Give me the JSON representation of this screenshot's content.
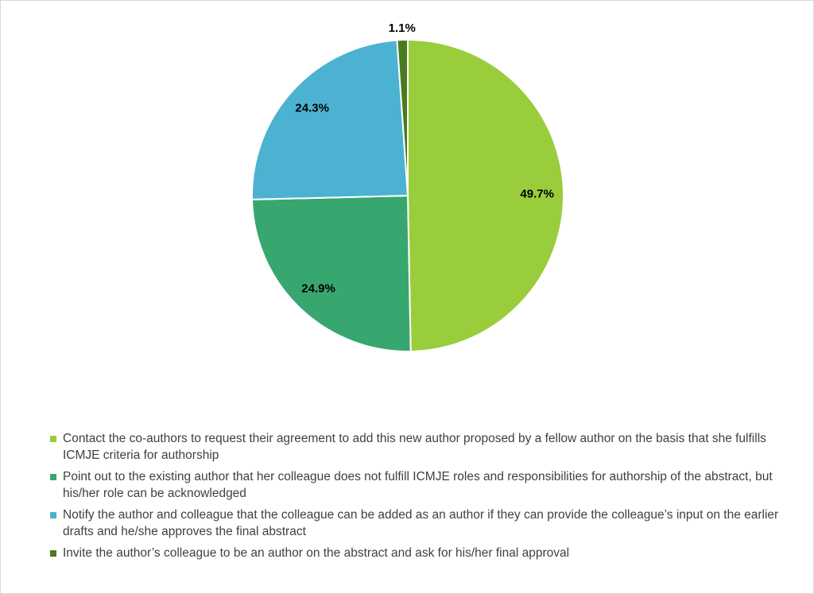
{
  "chart_data": {
    "type": "pie",
    "categories": [
      "Contact the co-authors to request their agreement to add this new author proposed by a fellow author on the basis that she fulfills ICMJE criteria for authorship",
      "Point out to the existing author that her colleague does not fulfill ICMJE roles and responsibilities for authorship of the abstract, but his/her role can be acknowledged",
      "Notify the author and colleague that the colleague can be added as an author if they can provide the colleague’s input on the earlier drafts and he/she approves the final abstract",
      "Invite the author’s colleague to be an author on the abstract and ask for his/her final approval"
    ],
    "values": [
      49.7,
      24.9,
      24.3,
      1.1
    ],
    "value_labels": [
      "49.7%",
      "24.9%",
      "24.3%",
      "1.1%"
    ],
    "colors": [
      "#9acd3c",
      "#38a66f",
      "#4bb3d1",
      "#4a7a1f"
    ],
    "legend": "bottom"
  }
}
